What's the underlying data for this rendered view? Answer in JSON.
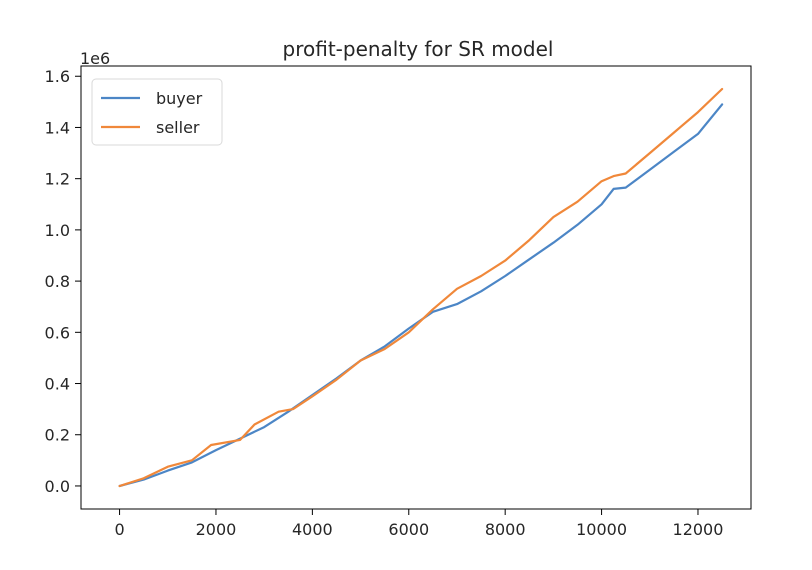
{
  "chart_data": {
    "type": "line",
    "title": "profit-penalty for SR model",
    "xlabel": "",
    "ylabel": "",
    "y_offset_label": "1e6",
    "xlim": [
      -800,
      13100
    ],
    "ylim": [
      -0.09,
      1.64
    ],
    "xticks": [
      0,
      2000,
      4000,
      6000,
      8000,
      10000,
      12000
    ],
    "xtick_labels": [
      "0",
      "2000",
      "4000",
      "6000",
      "8000",
      "10000",
      "12000"
    ],
    "yticks": [
      0.0,
      0.2,
      0.4,
      0.6,
      0.8,
      1.0,
      1.2,
      1.4,
      1.6
    ],
    "ytick_labels": [
      "0.0",
      "0.2",
      "0.4",
      "0.6",
      "0.8",
      "1.0",
      "1.2",
      "1.4",
      "1.6"
    ],
    "grid": false,
    "legend_position": "top-left",
    "series": [
      {
        "name": "buyer",
        "color": "#4c86c6",
        "points": [
          [
            0,
            0.0
          ],
          [
            500,
            0.025
          ],
          [
            1000,
            0.06
          ],
          [
            1500,
            0.092
          ],
          [
            2000,
            0.14
          ],
          [
            2500,
            0.185
          ],
          [
            3000,
            0.23
          ],
          [
            3500,
            0.29
          ],
          [
            4000,
            0.355
          ],
          [
            4500,
            0.42
          ],
          [
            5000,
            0.49
          ],
          [
            5500,
            0.545
          ],
          [
            6000,
            0.615
          ],
          [
            6500,
            0.68
          ],
          [
            7000,
            0.71
          ],
          [
            7500,
            0.76
          ],
          [
            8000,
            0.82
          ],
          [
            8500,
            0.885
          ],
          [
            9000,
            0.95
          ],
          [
            9500,
            1.02
          ],
          [
            10000,
            1.1
          ],
          [
            10250,
            1.16
          ],
          [
            10500,
            1.165
          ],
          [
            11000,
            1.235
          ],
          [
            11500,
            1.305
          ],
          [
            12000,
            1.375
          ],
          [
            12500,
            1.49
          ]
        ]
      },
      {
        "name": "seller",
        "color": "#f0883a",
        "points": [
          [
            0,
            0.0
          ],
          [
            500,
            0.03
          ],
          [
            1000,
            0.075
          ],
          [
            1500,
            0.1
          ],
          [
            1900,
            0.16
          ],
          [
            2500,
            0.18
          ],
          [
            2800,
            0.24
          ],
          [
            3300,
            0.29
          ],
          [
            3600,
            0.3
          ],
          [
            4000,
            0.35
          ],
          [
            4500,
            0.415
          ],
          [
            5000,
            0.49
          ],
          [
            5500,
            0.535
          ],
          [
            6000,
            0.6
          ],
          [
            6500,
            0.69
          ],
          [
            7000,
            0.77
          ],
          [
            7500,
            0.82
          ],
          [
            8000,
            0.88
          ],
          [
            8500,
            0.96
          ],
          [
            9000,
            1.05
          ],
          [
            9500,
            1.11
          ],
          [
            10000,
            1.19
          ],
          [
            10250,
            1.21
          ],
          [
            10500,
            1.22
          ],
          [
            11000,
            1.3
          ],
          [
            11500,
            1.38
          ],
          [
            12000,
            1.46
          ],
          [
            12500,
            1.55
          ]
        ]
      }
    ]
  }
}
